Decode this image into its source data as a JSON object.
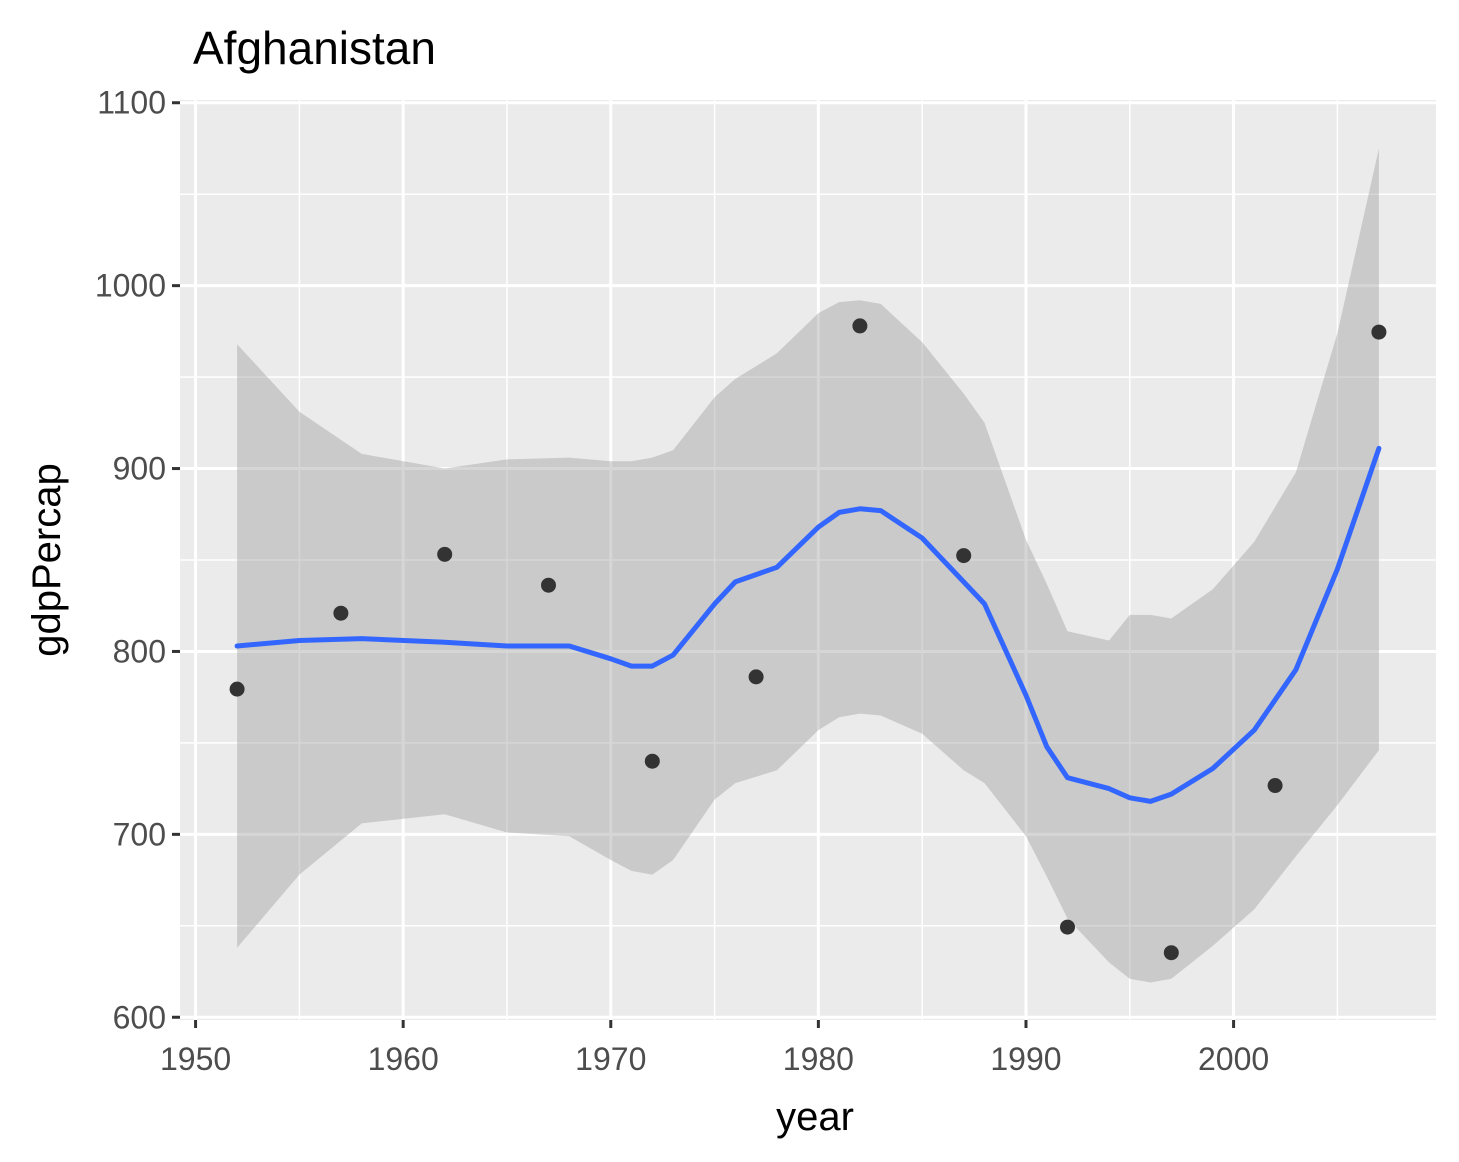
{
  "chart_data": {
    "type": "scatter",
    "title": "Afghanistan",
    "xlabel": "year",
    "ylabel": "gdpPercap",
    "xlim": [
      1949.25,
      2009.75
    ],
    "ylim": [
      598.5,
      1101.5
    ],
    "x_ticks": [
      1950,
      1960,
      1970,
      1980,
      1990,
      2000
    ],
    "x_minor_ticks": [
      1955,
      1965,
      1975,
      1985,
      1995,
      2005
    ],
    "y_ticks": [
      600,
      700,
      800,
      900,
      1000,
      1100
    ],
    "y_minor_ticks": [
      650,
      750,
      850,
      950,
      1050
    ],
    "x_tick_labels": [
      "1950",
      "1960",
      "1970",
      "1980",
      "1990",
      "2000"
    ],
    "y_tick_labels": [
      "600",
      "700",
      "800",
      "900",
      "1000",
      "1100"
    ],
    "grid": true,
    "panel_background": "#ebebeb",
    "grid_color": "#ffffff",
    "point_color": "#333333",
    "smooth_color": "#3366ff",
    "ribbon_color": "#999999",
    "series": [
      {
        "type": "points",
        "x": [
          1952,
          1957,
          1962,
          1967,
          1972,
          1977,
          1982,
          1987,
          1992,
          1997,
          2002,
          2007
        ],
        "y": [
          779.4,
          820.9,
          853.1,
          836.2,
          740.0,
          786.1,
          978.0,
          852.4,
          649.3,
          635.3,
          726.7,
          974.6
        ]
      },
      {
        "type": "smooth",
        "x": [
          1952,
          1955,
          1958,
          1962,
          1965,
          1968,
          1970,
          1971,
          1972,
          1973,
          1975,
          1976,
          1978,
          1980,
          1981,
          1982,
          1983,
          1985,
          1987,
          1988,
          1990,
          1991,
          1992,
          1994,
          1995,
          1996,
          1997,
          1999,
          2001,
          2003,
          2005,
          2007
        ],
        "y": [
          803,
          806,
          807,
          805,
          803,
          803,
          796,
          792,
          792,
          798,
          826,
          838,
          846,
          868,
          876,
          878,
          877,
          862,
          838,
          826,
          776,
          748,
          731,
          725,
          720,
          718,
          722,
          736,
          757,
          790,
          845,
          911
        ],
        "lower": [
          638,
          678,
          706,
          711,
          701,
          699,
          686,
          680,
          678,
          686,
          719,
          728,
          735,
          757,
          764,
          766,
          765,
          755,
          735,
          728,
          699,
          677,
          654,
          630,
          621,
          619,
          621,
          639,
          659,
          688,
          716,
          746
        ],
        "upper": [
          968,
          931,
          908,
          900,
          905,
          906,
          904,
          904,
          906,
          910,
          939,
          949,
          963,
          985,
          991,
          992,
          990,
          969,
          941,
          925,
          861,
          837,
          811,
          806,
          820,
          820,
          818,
          834,
          860,
          898,
          974,
          1075
        ]
      }
    ]
  }
}
